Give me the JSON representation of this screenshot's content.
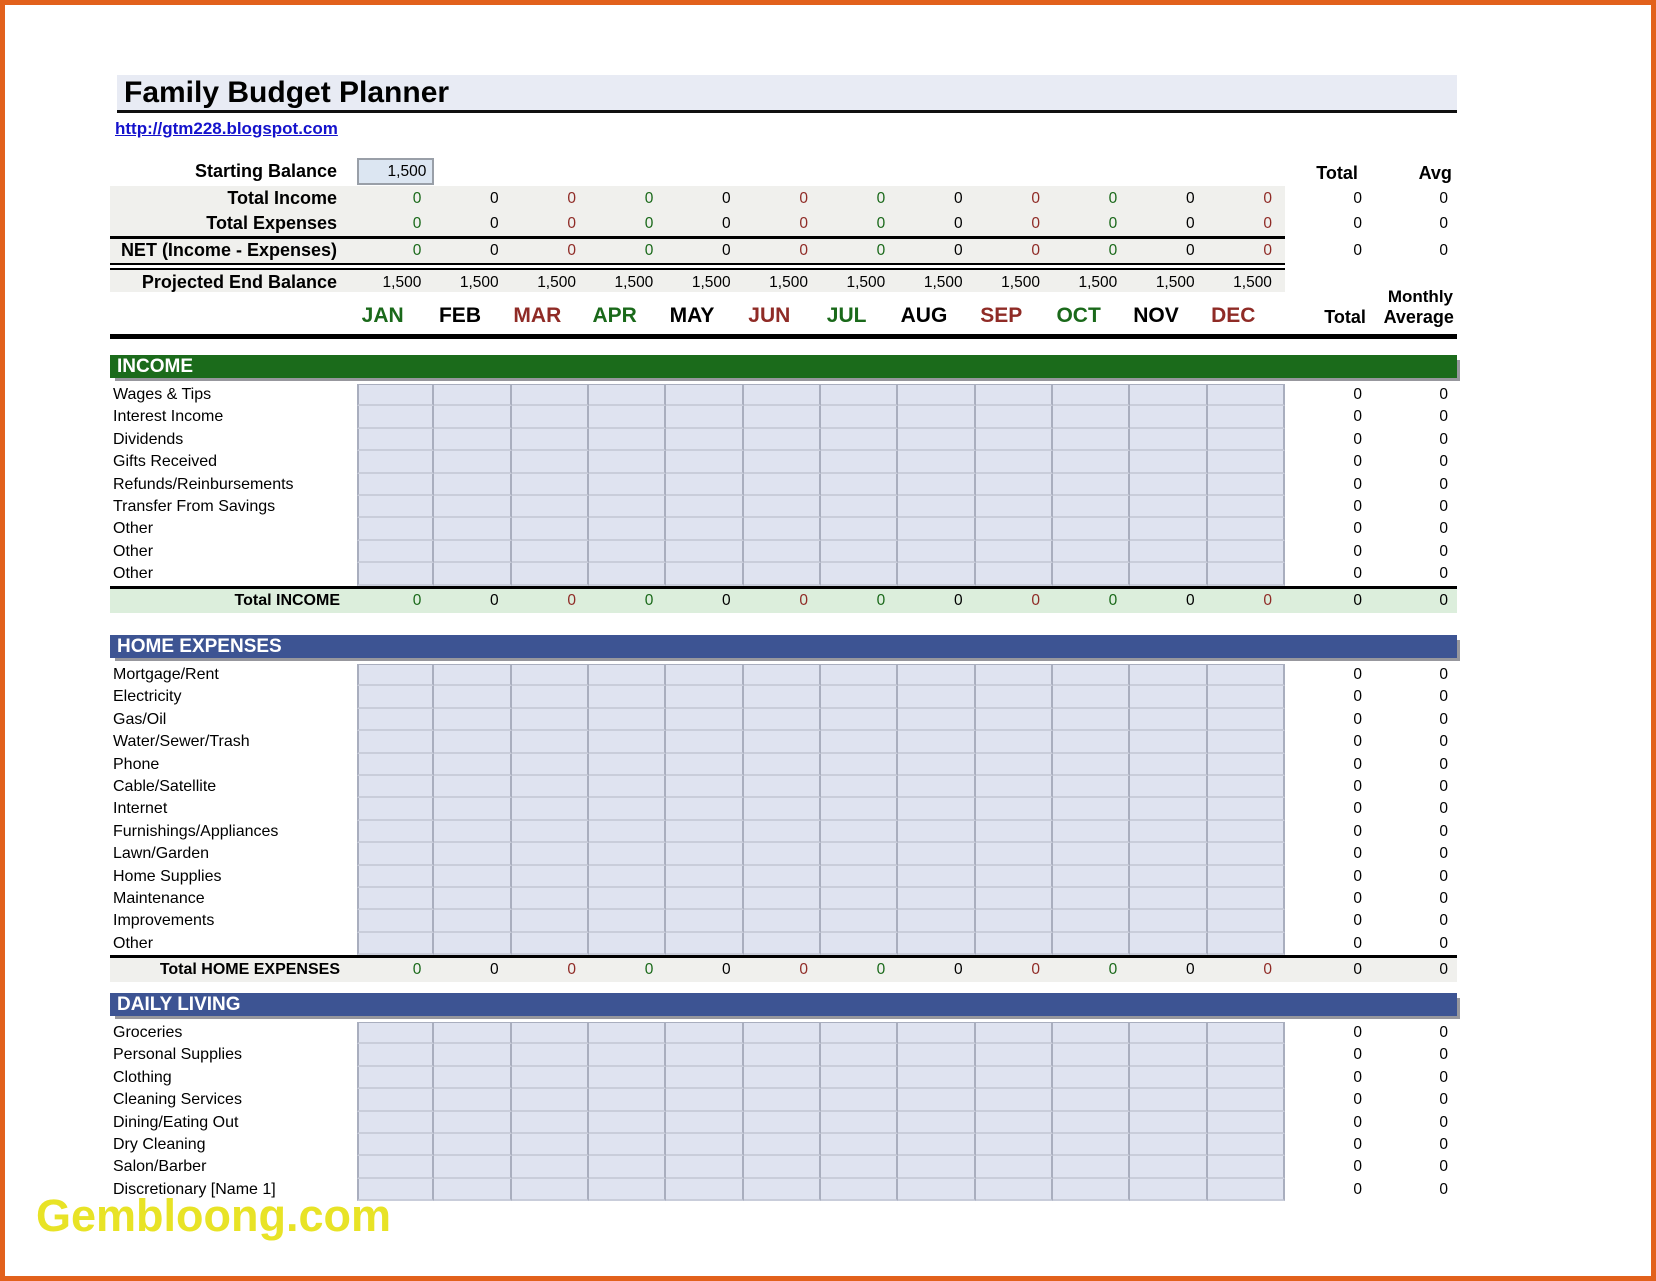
{
  "title": "Family Budget Planner",
  "link": "http://gtm228.blogspot.com",
  "watermark": "Gembloong.com",
  "headers": {
    "total": "Total",
    "avg": "Avg",
    "monthly": "Monthly",
    "months_total": "Total",
    "months_average": "Average"
  },
  "months": [
    {
      "label": "JAN",
      "color": "green"
    },
    {
      "label": "FEB",
      "color": "black"
    },
    {
      "label": "MAR",
      "color": "red"
    },
    {
      "label": "APR",
      "color": "green"
    },
    {
      "label": "MAY",
      "color": "black"
    },
    {
      "label": "JUN",
      "color": "red"
    },
    {
      "label": "JUL",
      "color": "green"
    },
    {
      "label": "AUG",
      "color": "black"
    },
    {
      "label": "SEP",
      "color": "red"
    },
    {
      "label": "OCT",
      "color": "green"
    },
    {
      "label": "NOV",
      "color": "black"
    },
    {
      "label": "DEC",
      "color": "red"
    }
  ],
  "summary": {
    "starting_balance": {
      "label": "Starting Balance",
      "value": "1,500"
    },
    "rows": [
      {
        "label": "Total Income",
        "values": [
          "0",
          "0",
          "0",
          "0",
          "0",
          "0",
          "0",
          "0",
          "0",
          "0",
          "0",
          "0"
        ],
        "total": "0",
        "avg": "0",
        "colored": true
      },
      {
        "label": "Total Expenses",
        "values": [
          "0",
          "0",
          "0",
          "0",
          "0",
          "0",
          "0",
          "0",
          "0",
          "0",
          "0",
          "0"
        ],
        "total": "0",
        "avg": "0",
        "colored": true
      },
      {
        "label": "NET (Income - Expenses)",
        "values": [
          "0",
          "0",
          "0",
          "0",
          "0",
          "0",
          "0",
          "0",
          "0",
          "0",
          "0",
          "0"
        ],
        "total": "0",
        "avg": "0",
        "colored": true
      },
      {
        "label": "Projected End Balance",
        "values": [
          "1,500",
          "1,500",
          "1,500",
          "1,500",
          "1,500",
          "1,500",
          "1,500",
          "1,500",
          "1,500",
          "1,500",
          "1,500",
          "1,500"
        ],
        "total": "",
        "avg": "",
        "colored": false
      }
    ]
  },
  "sections": [
    {
      "title": "INCOME",
      "style": "green",
      "rows": [
        {
          "label": "Wages & Tips",
          "total": "0",
          "avg": "0"
        },
        {
          "label": "Interest Income",
          "total": "0",
          "avg": "0"
        },
        {
          "label": "Dividends",
          "total": "0",
          "avg": "0"
        },
        {
          "label": "Gifts Received",
          "total": "0",
          "avg": "0"
        },
        {
          "label": "Refunds/Reinbursements",
          "total": "0",
          "avg": "0"
        },
        {
          "label": "Transfer From Savings",
          "total": "0",
          "avg": "0"
        },
        {
          "label": "Other",
          "total": "0",
          "avg": "0"
        },
        {
          "label": "Other",
          "total": "0",
          "avg": "0"
        },
        {
          "label": "Other",
          "total": "0",
          "avg": "0"
        }
      ],
      "total_row": {
        "label": "Total INCOME",
        "values": [
          "0",
          "0",
          "0",
          "0",
          "0",
          "0",
          "0",
          "0",
          "0",
          "0",
          "0",
          "0"
        ],
        "total": "0",
        "avg": "0",
        "bg": "green"
      }
    },
    {
      "title": "HOME EXPENSES",
      "style": "blue",
      "rows": [
        {
          "label": "Mortgage/Rent",
          "total": "0",
          "avg": "0"
        },
        {
          "label": "Electricity",
          "total": "0",
          "avg": "0"
        },
        {
          "label": "Gas/Oil",
          "total": "0",
          "avg": "0"
        },
        {
          "label": "Water/Sewer/Trash",
          "total": "0",
          "avg": "0"
        },
        {
          "label": "Phone",
          "total": "0",
          "avg": "0"
        },
        {
          "label": "Cable/Satellite",
          "total": "0",
          "avg": "0"
        },
        {
          "label": "Internet",
          "total": "0",
          "avg": "0"
        },
        {
          "label": "Furnishings/Appliances",
          "total": "0",
          "avg": "0"
        },
        {
          "label": "Lawn/Garden",
          "total": "0",
          "avg": "0"
        },
        {
          "label": "Home Supplies",
          "total": "0",
          "avg": "0"
        },
        {
          "label": "Maintenance",
          "total": "0",
          "avg": "0"
        },
        {
          "label": "Improvements",
          "total": "0",
          "avg": "0"
        },
        {
          "label": "Other",
          "total": "0",
          "avg": "0"
        }
      ],
      "total_row": {
        "label": "Total HOME EXPENSES",
        "values": [
          "0",
          "0",
          "0",
          "0",
          "0",
          "0",
          "0",
          "0",
          "0",
          "0",
          "0",
          "0"
        ],
        "total": "0",
        "avg": "0",
        "bg": "gray"
      }
    },
    {
      "title": "DAILY LIVING",
      "style": "blue",
      "rows": [
        {
          "label": "Groceries",
          "total": "0",
          "avg": "0"
        },
        {
          "label": "Personal Supplies",
          "total": "0",
          "avg": "0"
        },
        {
          "label": "Clothing",
          "total": "0",
          "avg": "0"
        },
        {
          "label": "Cleaning Services",
          "total": "0",
          "avg": "0"
        },
        {
          "label": "Dining/Eating Out",
          "total": "0",
          "avg": "0"
        },
        {
          "label": "Dry Cleaning",
          "total": "0",
          "avg": "0"
        },
        {
          "label": "Salon/Barber",
          "total": "0",
          "avg": "0"
        },
        {
          "label": "Discretionary [Name 1]",
          "total": "0",
          "avg": "0"
        }
      ],
      "total_row": null
    }
  ],
  "colors": {
    "border_orange": "#E2611C",
    "green_bar": "#1B6B1B",
    "blue_bar": "#3D5493",
    "title_bg": "#E8EBF4",
    "cell_fill": "#DFE3F0",
    "summary_bg": "#F0F0ED",
    "income_total_bg": "#DCEEDC",
    "value_green": "#1A691A",
    "value_red": "#8F2B26",
    "link_blue": "#1412CC",
    "watermark_yellow": "#E8E326"
  }
}
